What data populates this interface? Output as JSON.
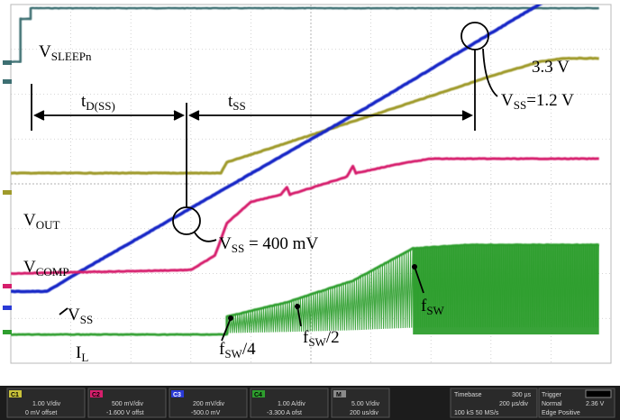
{
  "chart_data": {
    "type": "line",
    "title": "",
    "xlabel": "",
    "ylabel": "",
    "grid": true,
    "series": [
      {
        "name": "VSLEEPn",
        "color": "#3d6f72",
        "points": [
          [
            0,
            84
          ],
          [
            1.6,
            84
          ],
          [
            1.6,
            96
          ],
          [
            3.3,
            96
          ],
          [
            3.3,
            99
          ],
          [
            98,
            99
          ]
        ]
      },
      {
        "name": "VOUT",
        "color": "#9f9a2a",
        "points": [
          [
            0,
            53
          ],
          [
            35,
            53
          ],
          [
            36,
            56
          ],
          [
            60,
            69
          ],
          [
            80,
            80
          ],
          [
            88,
            84
          ],
          [
            92,
            85
          ],
          [
            98,
            85
          ]
        ]
      },
      {
        "name": "VSS",
        "color": "#1626c6",
        "points": [
          [
            0,
            20
          ],
          [
            6,
            20
          ],
          [
            12,
            26
          ],
          [
            36,
            49
          ],
          [
            60,
            72
          ],
          [
            84,
            96
          ],
          [
            93,
            105
          ]
        ]
      },
      {
        "name": "VCOMP",
        "color": "#d61f6c",
        "points": [
          [
            0,
            25
          ],
          [
            30,
            26
          ],
          [
            34,
            30
          ],
          [
            36,
            39
          ],
          [
            40,
            45
          ],
          [
            45,
            47
          ],
          [
            46,
            49
          ],
          [
            46.5,
            47
          ],
          [
            56,
            52
          ],
          [
            57,
            55
          ],
          [
            57.5,
            53
          ],
          [
            66,
            56
          ],
          [
            70,
            57
          ],
          [
            98,
            57
          ]
        ]
      },
      {
        "name": "IL",
        "color": "#2e9e2e",
        "points": [
          [
            0,
            8
          ],
          [
            36,
            8
          ],
          [
            36,
            13
          ],
          [
            46,
            17
          ],
          [
            57,
            23
          ],
          [
            67,
            32
          ],
          [
            76,
            33
          ],
          [
            98,
            33
          ]
        ]
      }
    ],
    "markers": [
      {
        "label": "VSS = 400 mV",
        "x": 36,
        "y": 49
      },
      {
        "label": "VSS=1.2 V",
        "x": 86,
        "y": 96
      }
    ],
    "intervals": [
      {
        "label": "tD(SS)",
        "from": 3.3,
        "to": 36
      },
      {
        "label": "tSS",
        "from": 36,
        "to": 86
      }
    ]
  },
  "labels": {
    "vsleep_main": "V",
    "vsleep_sub": "SLEEPn",
    "v33": "3.3 V",
    "tdss_main": "t",
    "tdss_sub": "D(SS)",
    "tss_main": "t",
    "tss_sub": "SS",
    "vss12_v": "V",
    "vss12_sub": "SS",
    "vss12_val": "=1.2 V",
    "vout_main": "V",
    "vout_sub": "OUT",
    "vss400_v": "V",
    "vss400_sub": "SS",
    "vss400_val": " = 400 mV",
    "vcomp_main": "V",
    "vcomp_sub": "COMP",
    "vss_main": "V",
    "vss_sub": "SS",
    "il_main": "I",
    "il_sub": "L",
    "fsw4_main": "f",
    "fsw4_sub": "SW",
    "fsw4_tail": "/4",
    "fsw2_main": "f",
    "fsw2_sub": "SW",
    "fsw2_tail": "/2",
    "fsw_main": "f",
    "fsw_sub": "SW"
  },
  "hud": {
    "c1_tag": "C1",
    "c1_scale": "1.00 V/div",
    "c1_offset": "0 mV offset",
    "c2_tag": "C2",
    "c2_scale": "500 mV/div",
    "c2_offset": "-1.600 V offst",
    "c3_tag": "C3",
    "c3_scale": "200 mV/div",
    "c3_offset": "-500.0 mV",
    "c4_tag": "C4",
    "c4_scale": "1.00 A/div",
    "c4_offset": "-3.300 A ofst",
    "m_tag": "M",
    "m_scale": "5.00 V/div",
    "m_offset": "200 us/div",
    "tb_label": "Timebase",
    "tb_value": "300 µs",
    "tb_div": "200 µs/div",
    "tb_rate": "100 kS  50 MS/s",
    "trig_label": "Trigger",
    "trig_mode": "Normal",
    "trig_level": "2.36 V",
    "trig_edge": "Edge  Positive",
    "colors": {
      "c1": "#c9c23a",
      "c2": "#d61f6c",
      "c3": "#2a3ad6",
      "c4": "#2e9e2e",
      "m": "#8a8a8a"
    }
  }
}
